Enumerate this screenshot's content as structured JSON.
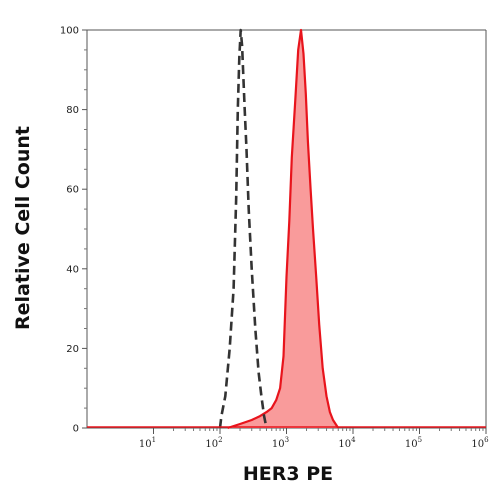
{
  "chart_data": {
    "type": "area",
    "xlabel": "HER3 PE",
    "ylabel": "Relative Cell Count",
    "x_scale": "log",
    "xlim": [
      1,
      1000000
    ],
    "ylim": [
      0,
      100
    ],
    "x_ticks": [
      {
        "base": "10",
        "exp": "1"
      },
      {
        "base": "10",
        "exp": "2"
      },
      {
        "base": "10",
        "exp": "3"
      },
      {
        "base": "10",
        "exp": "4"
      },
      {
        "base": "10",
        "exp": "5"
      },
      {
        "base": "10",
        "exp": "6"
      }
    ],
    "y_ticks": [
      "0",
      "20",
      "40",
      "60",
      "80",
      "100"
    ],
    "grid": false,
    "series": [
      {
        "style": "dashed",
        "color": "#333333",
        "fill": "none",
        "x": [
          100,
          105,
          120,
          140,
          160,
          175,
          185,
          195,
          205,
          215,
          225,
          235,
          250,
          270,
          300,
          340,
          380,
          420,
          460,
          500
        ],
        "y": [
          0,
          3,
          8,
          20,
          35,
          58,
          80,
          93,
          100,
          96,
          88,
          80,
          70,
          55,
          40,
          25,
          14,
          8,
          3,
          0
        ]
      },
      {
        "style": "solid",
        "color": "#e8141c",
        "fill": "#f99b9b",
        "x": [
          130,
          200,
          300,
          400,
          500,
          600,
          700,
          800,
          900,
          1000,
          1100,
          1200,
          1350,
          1500,
          1650,
          1800,
          1950,
          2100,
          2300,
          2500,
          2800,
          3100,
          3500,
          4000,
          4500,
          5000,
          6000
        ],
        "y": [
          0,
          1,
          2,
          3,
          4,
          5,
          7,
          10,
          18,
          38,
          52,
          68,
          82,
          95,
          100,
          94,
          84,
          72,
          60,
          50,
          38,
          26,
          15,
          8,
          4,
          2,
          0
        ]
      }
    ]
  }
}
